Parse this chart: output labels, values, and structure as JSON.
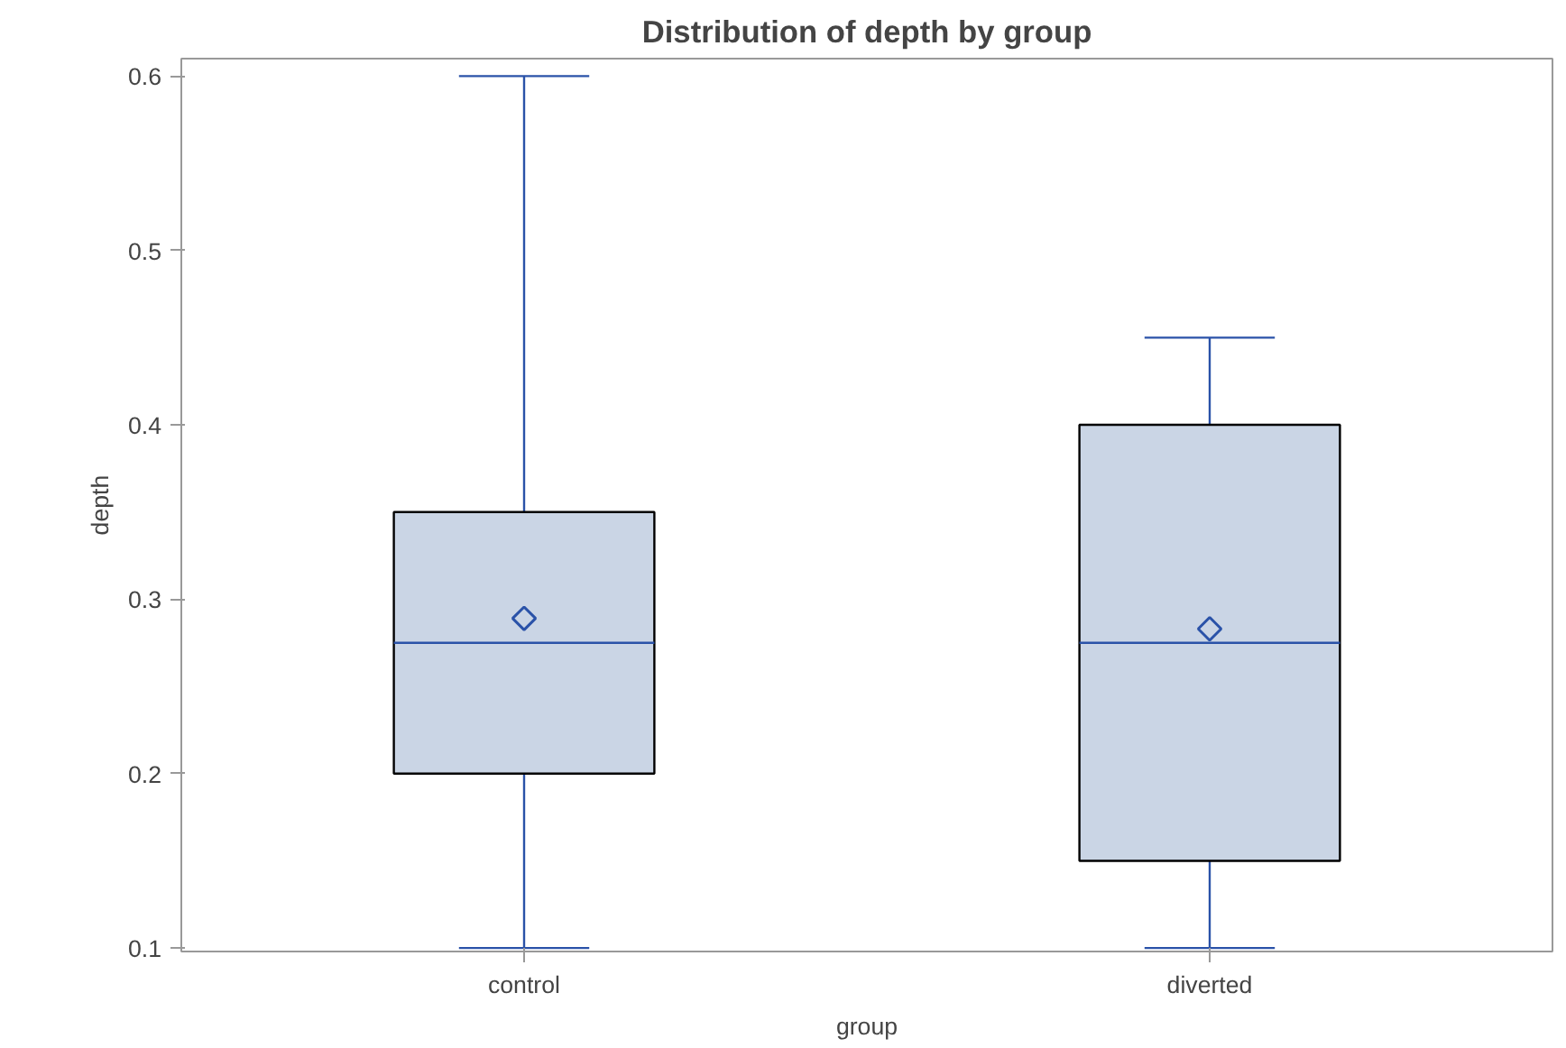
{
  "chart_data": {
    "type": "box",
    "title": "Distribution of depth by group",
    "xlabel": "group",
    "ylabel": "depth",
    "categories": [
      "control",
      "diverted"
    ],
    "boxes": [
      {
        "low": 0.1,
        "q1": 0.2,
        "median": 0.275,
        "q3": 0.35,
        "high": 0.6,
        "mean": 0.289
      },
      {
        "low": 0.1,
        "q1": 0.15,
        "median": 0.275,
        "q3": 0.4,
        "high": 0.45,
        "mean": 0.283
      }
    ],
    "color": "#cad5e5",
    "ylim": [
      0.098,
      0.61
    ],
    "yticks": [
      0.1,
      0.2,
      0.3,
      0.4,
      0.5,
      0.6
    ]
  }
}
